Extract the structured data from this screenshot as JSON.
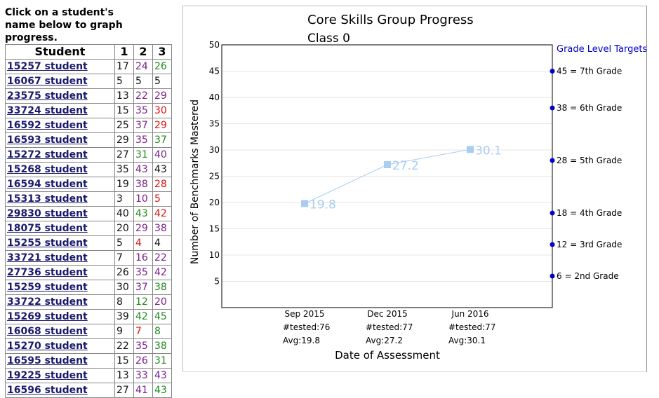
{
  "instructions": "Click on a student's name below to graph progress.",
  "table": {
    "headers": [
      "Student",
      "1",
      "2",
      "3"
    ],
    "score_colors": {
      "black": "#111111",
      "purple": "#7a1f8c",
      "green": "#1e8a1e",
      "red": "#e01010"
    },
    "rows": [
      {
        "name": "15257 student",
        "scores": [
          [
            "17",
            "black"
          ],
          [
            "24",
            "purple"
          ],
          [
            "26",
            "green"
          ]
        ]
      },
      {
        "name": "16067 student",
        "scores": [
          [
            "5",
            "black"
          ],
          [
            "5",
            "black"
          ],
          [
            "5",
            "black"
          ]
        ]
      },
      {
        "name": "23575 student",
        "scores": [
          [
            "13",
            "black"
          ],
          [
            "22",
            "purple"
          ],
          [
            "29",
            "purple"
          ]
        ]
      },
      {
        "name": "33724 student",
        "scores": [
          [
            "15",
            "black"
          ],
          [
            "35",
            "purple"
          ],
          [
            "30",
            "red"
          ]
        ]
      },
      {
        "name": "16592 student",
        "scores": [
          [
            "25",
            "black"
          ],
          [
            "37",
            "purple"
          ],
          [
            "29",
            "red"
          ]
        ]
      },
      {
        "name": "16593 student",
        "scores": [
          [
            "29",
            "black"
          ],
          [
            "35",
            "purple"
          ],
          [
            "37",
            "green"
          ]
        ]
      },
      {
        "name": "15272 student",
        "scores": [
          [
            "27",
            "black"
          ],
          [
            "31",
            "green"
          ],
          [
            "40",
            "purple"
          ]
        ]
      },
      {
        "name": "15268 student",
        "scores": [
          [
            "35",
            "black"
          ],
          [
            "43",
            "purple"
          ],
          [
            "43",
            "black"
          ]
        ]
      },
      {
        "name": "16594 student",
        "scores": [
          [
            "19",
            "black"
          ],
          [
            "38",
            "purple"
          ],
          [
            "28",
            "red"
          ]
        ]
      },
      {
        "name": "15313 student",
        "scores": [
          [
            "3",
            "black"
          ],
          [
            "10",
            "purple"
          ],
          [
            "5",
            "red"
          ]
        ]
      },
      {
        "name": "29830 student",
        "scores": [
          [
            "40",
            "black"
          ],
          [
            "43",
            "green"
          ],
          [
            "42",
            "red"
          ]
        ]
      },
      {
        "name": "18075 student",
        "scores": [
          [
            "20",
            "black"
          ],
          [
            "29",
            "purple"
          ],
          [
            "38",
            "purple"
          ]
        ]
      },
      {
        "name": "15255 student",
        "scores": [
          [
            "5",
            "black"
          ],
          [
            "4",
            "red"
          ],
          [
            "4",
            "black"
          ]
        ]
      },
      {
        "name": "33721 student",
        "scores": [
          [
            "7",
            "black"
          ],
          [
            "16",
            "purple"
          ],
          [
            "22",
            "purple"
          ]
        ]
      },
      {
        "name": "27736 student",
        "scores": [
          [
            "26",
            "black"
          ],
          [
            "35",
            "purple"
          ],
          [
            "42",
            "purple"
          ]
        ]
      },
      {
        "name": "15259 student",
        "scores": [
          [
            "30",
            "black"
          ],
          [
            "37",
            "purple"
          ],
          [
            "38",
            "green"
          ]
        ]
      },
      {
        "name": "33722 student",
        "scores": [
          [
            "8",
            "black"
          ],
          [
            "12",
            "green"
          ],
          [
            "20",
            "purple"
          ]
        ]
      },
      {
        "name": "15269 student",
        "scores": [
          [
            "39",
            "black"
          ],
          [
            "42",
            "green"
          ],
          [
            "45",
            "green"
          ]
        ]
      },
      {
        "name": "16068 student",
        "scores": [
          [
            "9",
            "black"
          ],
          [
            "7",
            "red"
          ],
          [
            "8",
            "green"
          ]
        ]
      },
      {
        "name": "15270 student",
        "scores": [
          [
            "22",
            "black"
          ],
          [
            "35",
            "purple"
          ],
          [
            "38",
            "green"
          ]
        ]
      },
      {
        "name": "16595 student",
        "scores": [
          [
            "15",
            "black"
          ],
          [
            "26",
            "purple"
          ],
          [
            "31",
            "green"
          ]
        ]
      },
      {
        "name": "19225 student",
        "scores": [
          [
            "13",
            "black"
          ],
          [
            "33",
            "purple"
          ],
          [
            "43",
            "purple"
          ]
        ]
      },
      {
        "name": "16596 student",
        "scores": [
          [
            "27",
            "black"
          ],
          [
            "41",
            "purple"
          ],
          [
            "43",
            "green"
          ]
        ]
      }
    ]
  },
  "chart_data": {
    "type": "line",
    "title": "Core Skills Group Progress",
    "subtitle": "Class 0",
    "xlabel": "Date of Assessment",
    "ylabel": "Number of Benchmarks Mastered",
    "ylim": [
      0,
      50
    ],
    "yticks": [
      5,
      10,
      15,
      20,
      25,
      30,
      35,
      40,
      45,
      50
    ],
    "categories": [
      "Sep 2015",
      "Dec 2015",
      "Jun 2016"
    ],
    "tested": [
      "#tested:76",
      "#tested:77",
      "#tested:77"
    ],
    "averages": [
      "Avg:19.8",
      "Avg:27.2",
      "Avg:30.1"
    ],
    "values": [
      19.8,
      27.2,
      30.1
    ],
    "value_labels": [
      "19.8",
      "27.2",
      "30.1"
    ],
    "grid": true,
    "series_color": "#a8cdf0",
    "targets": {
      "title": "Grade Level Targets",
      "color": "#0000cc",
      "items": [
        {
          "value": 45,
          "label": "45 = 7th Grade"
        },
        {
          "value": 38,
          "label": "38 = 6th Grade"
        },
        {
          "value": 28,
          "label": "28 = 5th Grade"
        },
        {
          "value": 18,
          "label": "18 = 4th Grade"
        },
        {
          "value": 12,
          "label": "12 = 3rd Grade"
        },
        {
          "value": 6,
          "label": " 6 = 2nd Grade"
        }
      ]
    }
  }
}
